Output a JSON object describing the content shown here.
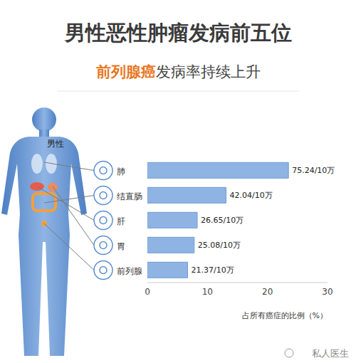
{
  "chart_data": {
    "type": "bar",
    "title": "男性恶性肿瘤发病前五位",
    "subtitle": [
      "前列腺癌",
      "发病率持续上升"
    ],
    "figure_label": "男性",
    "orientation": "horizontal",
    "categories": [
      "肺",
      "结直肠",
      "肝",
      "胃",
      "前列腺"
    ],
    "values": [
      23.5,
      13.1,
      8.3,
      7.8,
      6.7
    ],
    "annotations": [
      "75.24/10万",
      "42.04/10万",
      "26.65/10万",
      "25.08/10万",
      "21.37/10万"
    ],
    "color": "#8fb4e3",
    "xlabel": "占所有癌症的比例（%）",
    "xlim": [
      0,
      30
    ],
    "xticks": [
      0,
      10,
      20,
      30
    ],
    "grid": false,
    "watermark": "私人医生"
  }
}
